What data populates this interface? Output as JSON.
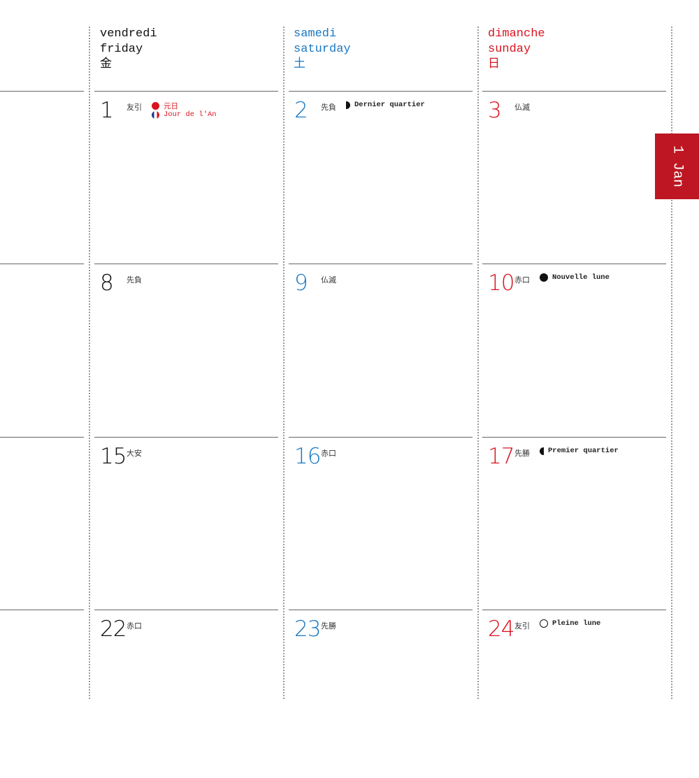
{
  "colors": {
    "black": "#111111",
    "saturday": "#1a78c2",
    "sunday": "#d8141e",
    "tab": "#be1622"
  },
  "headers": [
    {
      "fr": "vendredi",
      "en": "friday",
      "jp": "金"
    },
    {
      "fr": "samedi",
      "en": "saturday",
      "jp": "土"
    },
    {
      "fr": "dimanche",
      "en": "sunday",
      "jp": "日"
    }
  ],
  "month_tab": "1 Jan",
  "weeks": [
    [
      {
        "day": "1",
        "rokuyo": "友引",
        "events": [
          {
            "icon": "red-dot-icon",
            "text": "元日",
            "red": true
          },
          {
            "icon": "french-flag-icon",
            "text": "Jour de l'An",
            "red": true
          }
        ]
      },
      {
        "day": "2",
        "rokuyo": "先負",
        "events": [
          {
            "icon": "last-quarter-moon-icon",
            "text": "Dernier quartier"
          }
        ]
      },
      {
        "day": "3",
        "rokuyo": "仏滅",
        "events": []
      }
    ],
    [
      {
        "day": "8",
        "rokuyo": "先負",
        "events": []
      },
      {
        "day": "9",
        "rokuyo": "仏滅",
        "events": []
      },
      {
        "day": "10",
        "rokuyo": "赤口",
        "events": [
          {
            "icon": "new-moon-icon",
            "text": "Nouvelle lune"
          }
        ]
      }
    ],
    [
      {
        "day": "15",
        "rokuyo": "大安",
        "events": []
      },
      {
        "day": "16",
        "rokuyo": "赤口",
        "events": []
      },
      {
        "day": "17",
        "rokuyo": "先勝",
        "events": [
          {
            "icon": "first-quarter-moon-icon",
            "text": "Premier quartier"
          }
        ]
      }
    ],
    [
      {
        "day": "22",
        "rokuyo": "赤口",
        "events": []
      },
      {
        "day": "23",
        "rokuyo": "先勝",
        "events": []
      },
      {
        "day": "24",
        "rokuyo": "友引",
        "events": [
          {
            "icon": "full-moon-icon",
            "text": "Pleine lune"
          }
        ]
      }
    ]
  ]
}
